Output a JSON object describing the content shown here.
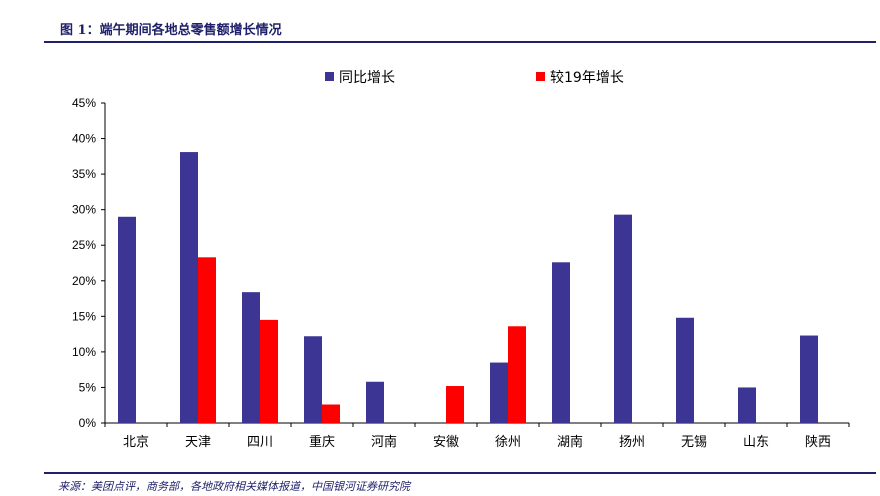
{
  "header": {
    "title": "图 1：端午期间各地总零售额增长情况"
  },
  "footer": {
    "source": "来源：美团点评，商务部，各地政府相关媒体报道，中国银河证券研究院"
  },
  "colors": {
    "series1": "#3d3594",
    "series2": "#ff0000",
    "rule": "#1f1f6b"
  },
  "chart_data": {
    "type": "bar",
    "categories": [
      "北京",
      "天津",
      "四川",
      "重庆",
      "河南",
      "安徽",
      "徐州",
      "湖南",
      "扬州",
      "无锡",
      "山东",
      "陕西"
    ],
    "series": [
      {
        "name": "同比增长",
        "values": [
          29.0,
          38.1,
          18.4,
          12.2,
          5.8,
          null,
          8.5,
          22.6,
          29.3,
          14.8,
          5.0,
          12.3
        ]
      },
      {
        "name": "较19年增长",
        "values": [
          null,
          23.3,
          14.5,
          2.6,
          null,
          5.2,
          13.6,
          null,
          null,
          null,
          null,
          null
        ]
      }
    ],
    "ylim": [
      0,
      45
    ],
    "yticks": [
      "0%",
      "5%",
      "10%",
      "15%",
      "20%",
      "25%",
      "30%",
      "35%",
      "40%",
      "45%"
    ],
    "ytick_values": [
      0,
      5,
      10,
      15,
      20,
      25,
      30,
      35,
      40,
      45
    ],
    "legend_position": "top",
    "grid": false
  }
}
